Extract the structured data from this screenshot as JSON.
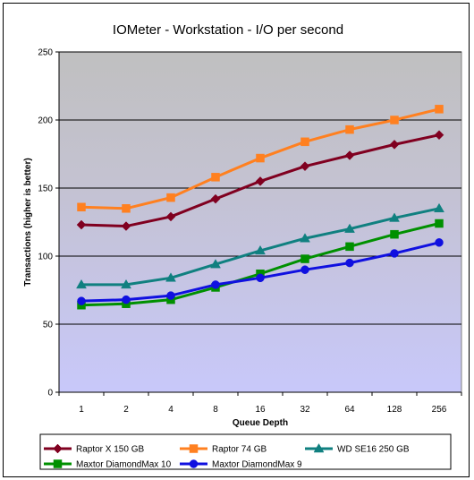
{
  "chart_data": {
    "type": "line",
    "title": "IOMeter - Workstation - I/O per second",
    "xlabel": "Queue Depth",
    "ylabel": "Transactions (higher is better)",
    "categories": [
      "1",
      "2",
      "4",
      "8",
      "16",
      "32",
      "64",
      "128",
      "256"
    ],
    "ylim": [
      0,
      250
    ],
    "yticks": [
      0,
      50,
      100,
      150,
      200,
      250
    ],
    "grid": true,
    "legend_position": "bottom",
    "series": [
      {
        "name": "Raptor X 150 GB",
        "color": "#800020",
        "marker": "diamond",
        "values": [
          123,
          122,
          129,
          142,
          155,
          166,
          174,
          182,
          189
        ]
      },
      {
        "name": "Raptor 74 GB",
        "color": "#ff8020",
        "marker": "square",
        "values": [
          136,
          135,
          143,
          158,
          172,
          184,
          193,
          200,
          208
        ]
      },
      {
        "name": "WD SE16 250 GB",
        "color": "#108080",
        "marker": "triangle",
        "values": [
          79,
          79,
          84,
          94,
          104,
          113,
          120,
          128,
          135
        ]
      },
      {
        "name": "Maxtor DiamondMax 10",
        "color": "#009000",
        "marker": "square",
        "values": [
          64,
          65,
          68,
          77,
          87,
          98,
          107,
          116,
          124
        ]
      },
      {
        "name": "Maxtor DiamondMax 9",
        "color": "#1010e0",
        "marker": "circle",
        "values": [
          67,
          68,
          71,
          79,
          84,
          90,
          95,
          102,
          110
        ]
      }
    ]
  }
}
